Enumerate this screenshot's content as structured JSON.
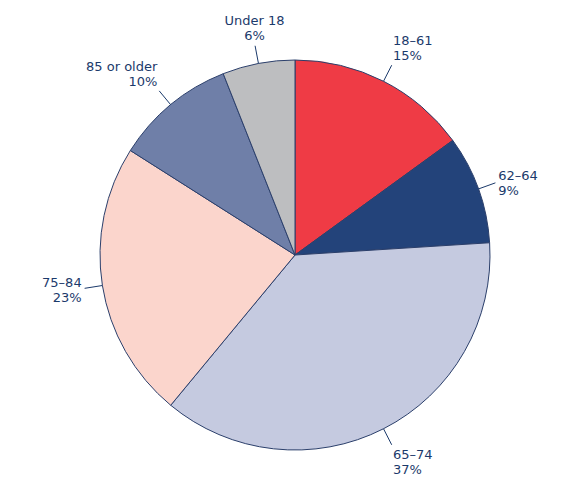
{
  "chart_data": {
    "type": "pie",
    "categories": [
      "18–61",
      "62–64",
      "65–74",
      "75–84",
      "85 or older",
      "Under 18"
    ],
    "values": [
      15,
      9,
      37,
      23,
      10,
      6
    ],
    "value_labels": [
      "15%",
      "9%",
      "37%",
      "23%",
      "10%",
      "6%"
    ],
    "colors": [
      "#ef3b45",
      "#23437a",
      "#c5cae0",
      "#fbd5cc",
      "#6f7fa8",
      "#bdbec0"
    ],
    "data_labels": true
  }
}
